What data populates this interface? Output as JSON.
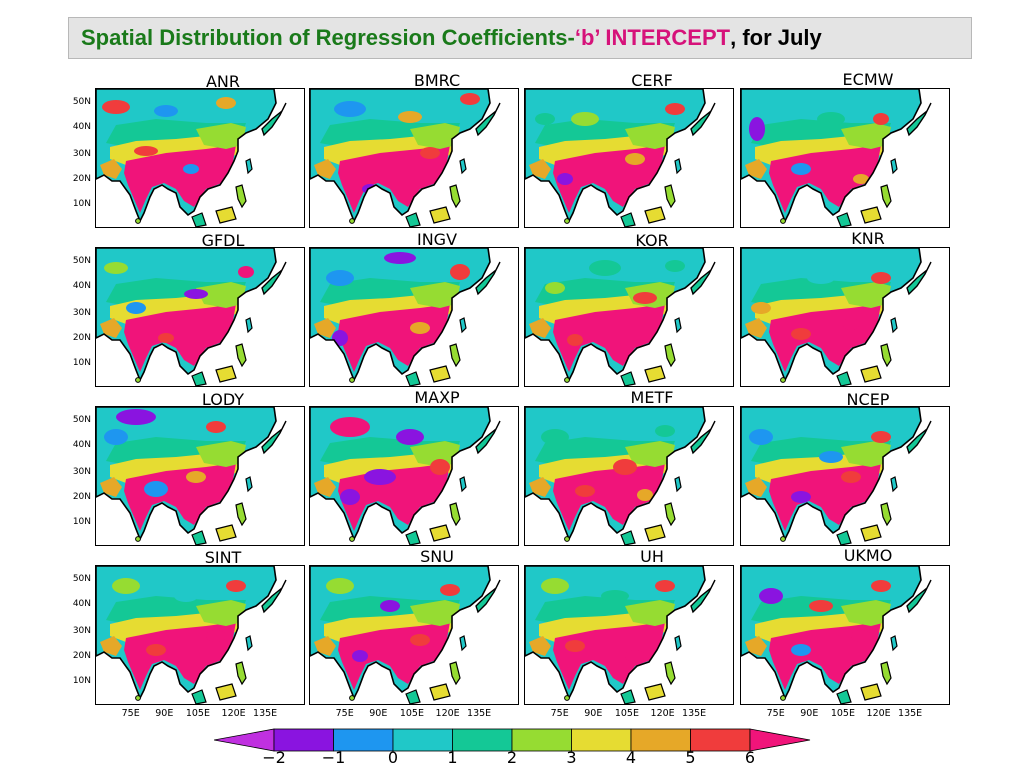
{
  "title": {
    "part1": "Spatial Distribution of Regression Coefficients- ",
    "part2": "‘b’ INTERCEPT",
    "part3": ", for  July"
  },
  "colors": {
    "title_green": "#1a7a1a",
    "title_pink": "#d6127a",
    "scale": [
      "#c030e0",
      "#8a14e0",
      "#1e96f0",
      "#20c8c8",
      "#14c896",
      "#96dc32",
      "#e6dc32",
      "#e6a828",
      "#f03c3c",
      "#f0147a"
    ]
  },
  "panels": [
    {
      "label": "ANR"
    },
    {
      "label": "BMRC"
    },
    {
      "label": "CERF"
    },
    {
      "label": "ECMW"
    },
    {
      "label": "GFDL"
    },
    {
      "label": "INGV"
    },
    {
      "label": "KOR"
    },
    {
      "label": "KNR"
    },
    {
      "label": "LODY"
    },
    {
      "label": "MAXP"
    },
    {
      "label": "METF"
    },
    {
      "label": "NCEP"
    },
    {
      "label": "SINT"
    },
    {
      "label": "SNU"
    },
    {
      "label": "UH"
    },
    {
      "label": "UKMO"
    }
  ],
  "lat_labels": [
    "50N",
    "40N",
    "30N",
    "20N",
    "10N"
  ],
  "lon_labels": [
    "75E",
    "90E",
    "105E",
    "120E",
    "135E"
  ],
  "colorbar": {
    "labels": [
      "−2",
      "−1",
      "0",
      "1",
      "2",
      "3",
      "4",
      "5",
      "6"
    ]
  }
}
